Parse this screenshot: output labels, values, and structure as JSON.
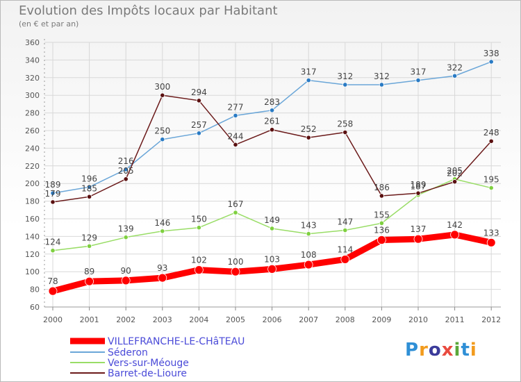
{
  "title": "Evolution des Impôts locaux par Habitant",
  "subtitle": "(en € et par an)",
  "logo": {
    "text": "Proxiti",
    "colors": [
      "#2f8fd6",
      "#f29b1d",
      "#3b3b9a",
      "#e94a3f",
      "#5aa83a",
      "#2f8fd6",
      "#f29b1d"
    ]
  },
  "chart_data": {
    "type": "line",
    "title": "Evolution des Impôts locaux par Habitant",
    "subtitle": "(en € et par an)",
    "x": [
      "2000",
      "2001",
      "2002",
      "2003",
      "2004",
      "2005",
      "2006",
      "2007",
      "2008",
      "2009",
      "2010",
      "2011",
      "2012"
    ],
    "ylim": [
      60,
      360
    ],
    "yticks": [
      60,
      80,
      100,
      120,
      140,
      160,
      180,
      200,
      220,
      240,
      260,
      280,
      300,
      320,
      340,
      360
    ],
    "grid": true,
    "legend_position": "bottom-left",
    "series": [
      {
        "name": "VILLEFRANCHE-LE-CHâTEAU",
        "color": "#ff0000",
        "values": [
          78,
          89,
          90,
          93,
          102,
          100,
          103,
          108,
          114,
          136,
          137,
          142,
          133
        ]
      },
      {
        "name": "Séderon",
        "color": "#6aa6d8",
        "values": [
          189,
          196,
          216,
          250,
          257,
          277,
          283,
          317,
          312,
          312,
          317,
          322,
          338
        ]
      },
      {
        "name": "Vers-sur-Méouge",
        "color": "#99dd66",
        "values": [
          124,
          129,
          139,
          146,
          150,
          167,
          149,
          143,
          147,
          155,
          187,
          205,
          195
        ]
      },
      {
        "name": "Barret-de-Lioure",
        "color": "#6b1a1a",
        "values": [
          179,
          185,
          205,
          300,
          294,
          244,
          261,
          252,
          258,
          186,
          189,
          202,
          248
        ]
      }
    ]
  }
}
